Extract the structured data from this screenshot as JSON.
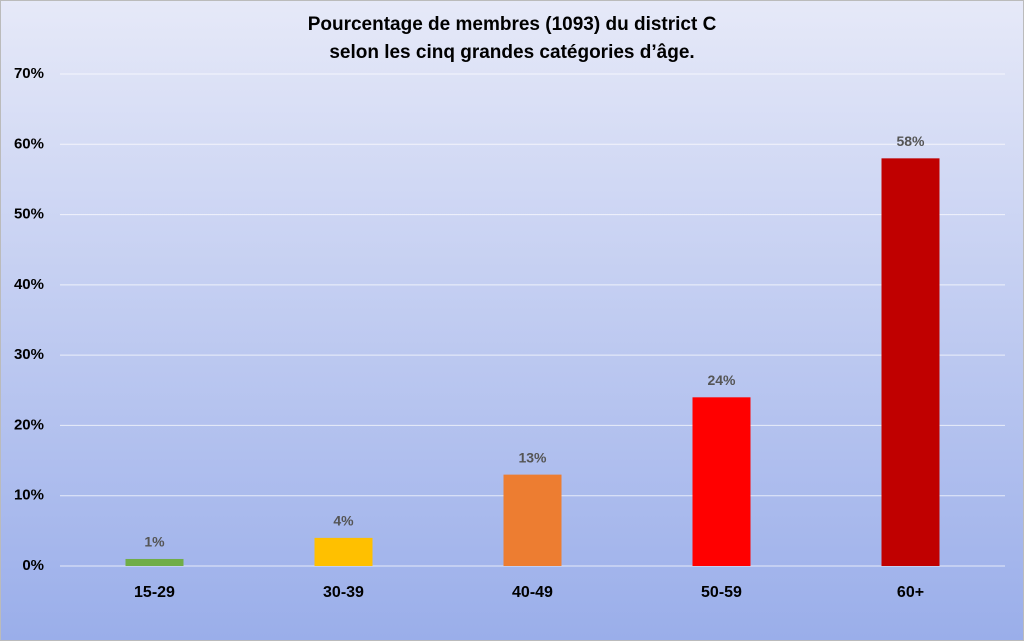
{
  "chart_data": {
    "type": "bar",
    "title": [
      "Pourcentage de membres (1093) du district C",
      "selon les cinq grandes catégories d’âge."
    ],
    "categories": [
      "15-29",
      "30-39",
      "40-49",
      "50-59",
      "60+"
    ],
    "values": [
      1,
      4,
      13,
      24,
      58
    ],
    "value_labels": [
      "1%",
      "4%",
      "13%",
      "24%",
      "58%"
    ],
    "colors": [
      "#70ad47",
      "#ffc000",
      "#ed7d31",
      "#ff0000",
      "#c00000"
    ],
    "ylim": [
      0,
      70
    ],
    "yticks": [
      {
        "value": 0,
        "label": "0%"
      },
      {
        "value": 10,
        "label": "10%"
      },
      {
        "value": 20,
        "label": "20%"
      },
      {
        "value": 30,
        "label": "30%"
      },
      {
        "value": 40,
        "label": "40%"
      },
      {
        "value": 50,
        "label": "50%"
      },
      {
        "value": 60,
        "label": "60%"
      },
      {
        "value": 70,
        "label": "70%"
      }
    ],
    "grid": true
  }
}
